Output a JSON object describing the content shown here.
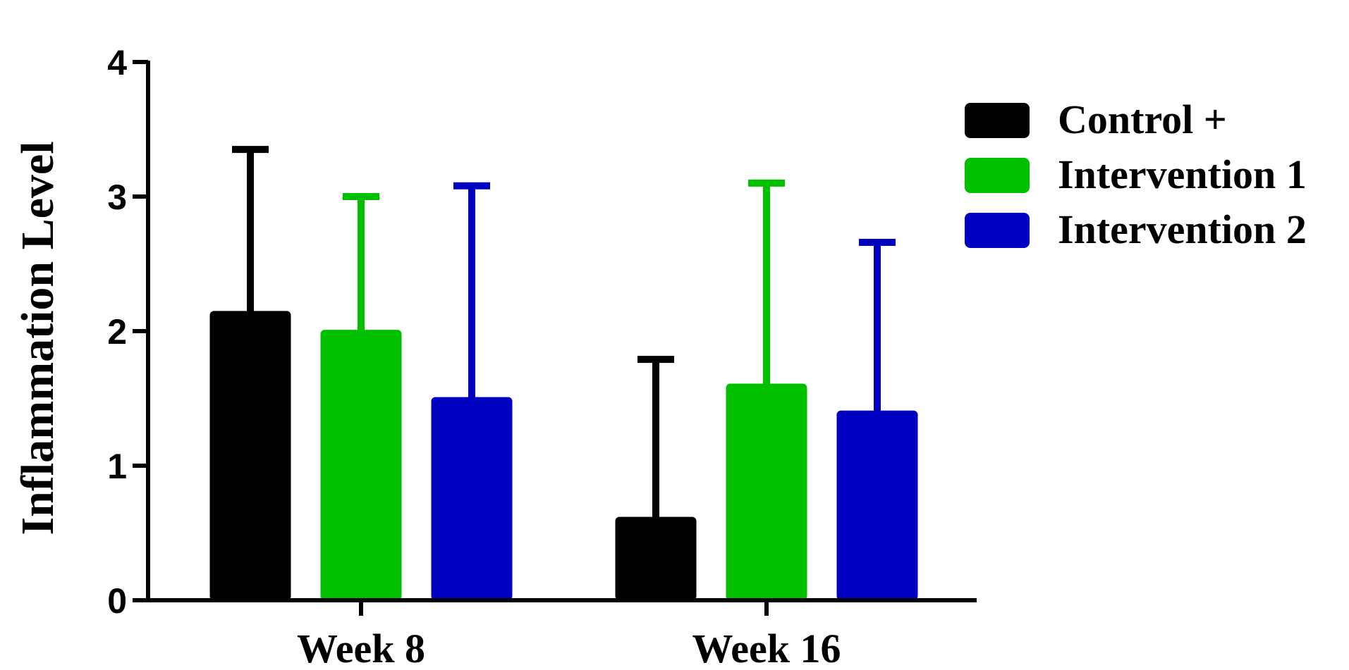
{
  "chart_data": {
    "type": "bar",
    "categories": [
      "Week 8",
      "Week 16"
    ],
    "series": [
      {
        "name": "Control +",
        "color": "#000000",
        "values": [
          2.15,
          0.62
        ],
        "error": [
          1.2,
          1.17
        ]
      },
      {
        "name": "Intervention 1",
        "color": "#00c000",
        "values": [
          2.01,
          1.61
        ],
        "error": [
          0.99,
          1.49
        ]
      },
      {
        "name": "Intervention 2",
        "color": "#0000c0",
        "values": [
          1.51,
          1.41
        ],
        "error": [
          1.57,
          1.25
        ]
      }
    ],
    "ylabel": "Inflammation Level",
    "xlabel": "",
    "ylim": [
      0,
      4
    ],
    "yticks": [
      0,
      1,
      2,
      3,
      4
    ],
    "legend": "right",
    "grid": false
  }
}
